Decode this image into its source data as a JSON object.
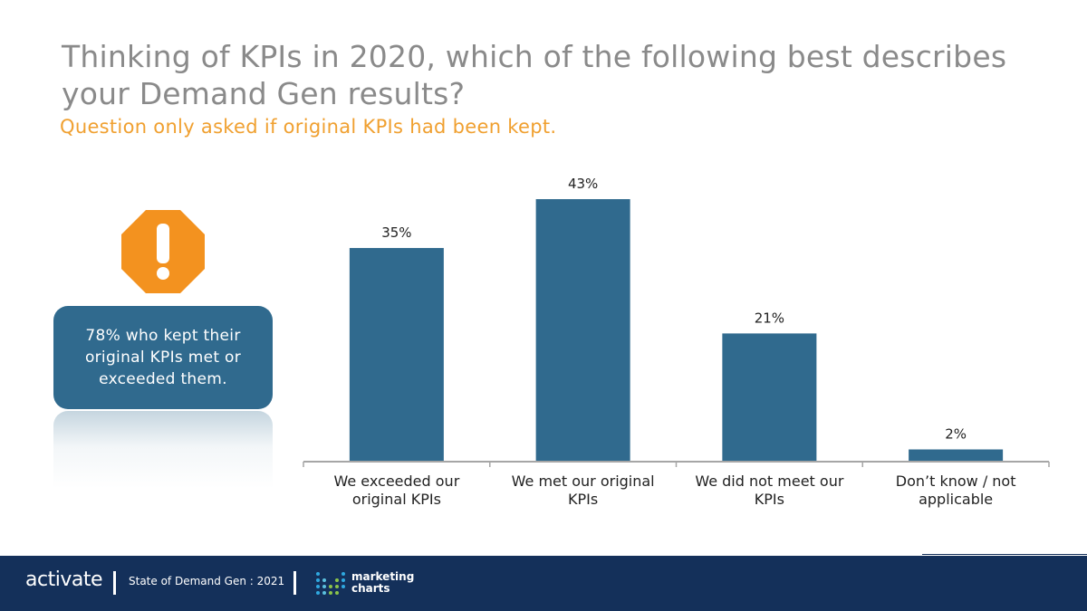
{
  "header": {
    "title": "Thinking of KPIs in 2020, which of the following best describes your Demand Gen results?",
    "subtitle": "Question only asked if original KPIs had been kept."
  },
  "callout": {
    "text": "78% who kept their original KPIs met or exceeded them.",
    "icon": "warning-octagon-icon"
  },
  "colors": {
    "bar": "#306a8e",
    "accent": "#f0a030",
    "warning": "#f3921f",
    "footer": "#14305a"
  },
  "chart_data": {
    "type": "bar",
    "title": "",
    "categories": [
      [
        "We exceeded our",
        "original KPIs"
      ],
      [
        "We met our original",
        "KPIs"
      ],
      [
        "We did not meet our",
        "KPIs"
      ],
      [
        "Don’t know / not",
        "applicable"
      ]
    ],
    "values": [
      35,
      43,
      21,
      2
    ],
    "value_labels": [
      "35%",
      "43%",
      "21%",
      "2%"
    ],
    "ylim": [
      0,
      43
    ],
    "xlabel": "",
    "ylabel": "",
    "grid": false
  },
  "footer": {
    "brand": "activate",
    "report": "State of Demand Gen : 2021",
    "partner_line1": "marketing",
    "partner_line2": "charts"
  }
}
